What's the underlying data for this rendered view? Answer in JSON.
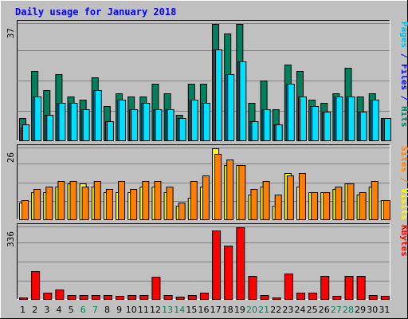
{
  "chart_data": {
    "type": "bar",
    "title": "Daily usage for January 2018",
    "categories": [
      "1",
      "2",
      "3",
      "4",
      "5",
      "6",
      "7",
      "8",
      "9",
      "10",
      "11",
      "12",
      "13",
      "14",
      "15",
      "16",
      "17",
      "18",
      "19",
      "20",
      "21",
      "22",
      "23",
      "24",
      "25",
      "26",
      "27",
      "28",
      "29",
      "30",
      "31"
    ],
    "weekend_days": [
      "6",
      "7",
      "13",
      "14",
      "20",
      "21",
      "27",
      "28"
    ],
    "panels": [
      {
        "name": "hits_files_pages",
        "ymax_label": "37",
        "ylim": [
          0,
          37
        ],
        "right_label_parts": [
          {
            "text": "Pages",
            "color": "#00c0e0"
          },
          {
            "text": " / ",
            "color": "#0000ff"
          },
          {
            "text": "Files",
            "color": "#0000ff"
          },
          {
            "text": " / ",
            "color": "#0000ff"
          },
          {
            "text": "Hits",
            "color": "#00805c"
          }
        ],
        "series": [
          {
            "name": "Hits",
            "color": "#00805c",
            "values": [
              7,
              22,
              16,
              21,
              14,
              13,
              20,
              11,
              15,
              14,
              14,
              18,
              15,
              8,
              18,
              18,
              37,
              34,
              37,
              12,
              19,
              10,
              24,
              22,
              13,
              12,
              15,
              23,
              14,
              15,
              7
            ]
          },
          {
            "name": "Files",
            "color": "#0080c0",
            "values": [
              4,
              14,
              8,
              12,
              12,
              10,
              16,
              6,
              13,
              10,
              12,
              10,
              10,
              7,
              13,
              12,
              29,
              21,
              25,
              6,
              10,
              5,
              18,
              14,
              11,
              9,
              14,
              14,
              9,
              13,
              7
            ]
          },
          {
            "name": "Pages",
            "color": "#00e0ff",
            "values": [
              5,
              14,
              8,
              12,
              12,
              10,
              16,
              6,
              13,
              10,
              12,
              10,
              10,
              7,
              13,
              12,
              29,
              21,
              25,
              6,
              10,
              5,
              18,
              14,
              11,
              9,
              14,
              14,
              9,
              13,
              7
            ]
          }
        ]
      },
      {
        "name": "visits_sites",
        "ymax_label": "26",
        "ylim": [
          0,
          26
        ],
        "right_label_parts": [
          {
            "text": "Sites",
            "color": "#ff8000"
          },
          {
            "text": " / ",
            "color": "#ff8000"
          },
          {
            "text": "Visits",
            "color": "#ffff00"
          }
        ],
        "series": [
          {
            "name": "Visits",
            "color": "#ffff00",
            "values": [
              6,
              10,
              10,
              12,
              13,
              13,
              12,
              10,
              10,
              10,
              12,
              12,
              10,
              5,
              8,
              12,
              26,
              20,
              20,
              9,
              12,
              5,
              17,
              12,
              10,
              10,
              11,
              13,
              9,
              12,
              7
            ]
          },
          {
            "name": "Sites",
            "color": "#ff8000",
            "values": [
              7,
              11,
              12,
              14,
              14,
              12,
              14,
              11,
              14,
              11,
              14,
              14,
              12,
              6,
              14,
              16,
              24,
              22,
              20,
              11,
              14,
              9,
              16,
              17,
              10,
              10,
              12,
              13,
              10,
              14,
              7
            ]
          }
        ]
      },
      {
        "name": "kbytes",
        "ymax_label": "336",
        "ylim": [
          0,
          336
        ],
        "right_label_parts": [
          {
            "text": "KBytes",
            "color": "#ff0000"
          }
        ],
        "series": [
          {
            "name": "KBytes",
            "color": "#ff0000",
            "values": [
              9,
              130,
              30,
              45,
              18,
              18,
              18,
              18,
              14,
              18,
              18,
              105,
              18,
              12,
              18,
              28,
              320,
              250,
              335,
              108,
              20,
              9,
              120,
              28,
              28,
              108,
              16,
              110,
              110,
              20,
              14
            ]
          }
        ]
      }
    ],
    "grid": true,
    "colors": {
      "background": "#c0c0c0",
      "plot_background": "#c0c0c0",
      "title": "#0000ff",
      "weekday_label": "#000000",
      "weekend_label": "#00805c",
      "gridline": "#808080"
    }
  }
}
